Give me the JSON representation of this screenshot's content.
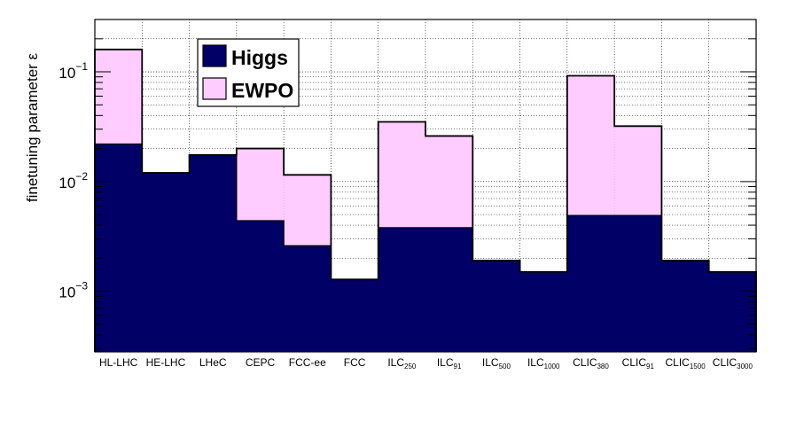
{
  "chart_data": {
    "type": "bar",
    "stacked": false,
    "bar_mode": "overlay",
    "yscale": "log",
    "ylim": [
      0.00028,
      0.3
    ],
    "ylabel": "finetuning parameter ε",
    "y_ticks": [
      {
        "value": 0.1,
        "base": "10",
        "exp": "−1"
      },
      {
        "value": 0.01,
        "base": "10",
        "exp": "−2"
      },
      {
        "value": 0.001,
        "base": "10",
        "exp": "−3"
      }
    ],
    "categories": [
      {
        "main": "HL-LHC",
        "sub": ""
      },
      {
        "main": "HE-LHC",
        "sub": ""
      },
      {
        "main": "LHeC",
        "sub": ""
      },
      {
        "main": "CEPC",
        "sub": ""
      },
      {
        "main": "FCC-ee",
        "sub": ""
      },
      {
        "main": "FCC",
        "sub": ""
      },
      {
        "main": "ILC",
        "sub": "250"
      },
      {
        "main": "ILC",
        "sub": "91"
      },
      {
        "main": "ILC",
        "sub": "500"
      },
      {
        "main": "ILC",
        "sub": "1000"
      },
      {
        "main": "CLIC",
        "sub": "380"
      },
      {
        "main": "CLIC",
        "sub": "91"
      },
      {
        "main": "CLIC",
        "sub": "1500"
      },
      {
        "main": "CLIC",
        "sub": "3000"
      }
    ],
    "series": [
      {
        "name": "EWPO",
        "color": "#ffccff",
        "values": [
          0.16,
          null,
          null,
          0.02,
          0.0115,
          null,
          0.035,
          0.026,
          null,
          null,
          0.092,
          0.032,
          null,
          null
        ]
      },
      {
        "name": "Higgs",
        "color": "#000066",
        "values": [
          0.022,
          0.012,
          0.0175,
          0.0044,
          0.0026,
          0.00128,
          0.0038,
          0.0038,
          0.0019,
          0.0015,
          0.0049,
          0.0049,
          0.0019,
          0.0015
        ]
      }
    ],
    "grid": true,
    "legend_position": "top-left"
  }
}
